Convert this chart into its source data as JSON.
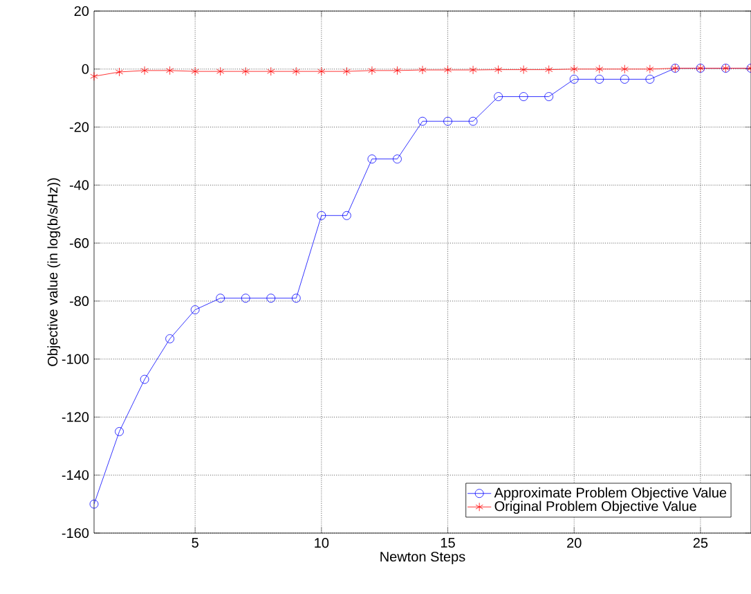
{
  "chart_data": {
    "type": "line",
    "xlabel": "Newton Steps",
    "ylabel": "Objective value (in log(b/s/Hz))",
    "x": [
      1,
      2,
      3,
      4,
      5,
      6,
      7,
      8,
      9,
      10,
      11,
      12,
      13,
      14,
      15,
      16,
      17,
      18,
      19,
      20,
      21,
      22,
      23,
      24,
      25,
      26,
      27
    ],
    "series": [
      {
        "name": "Approximate Problem Objective Value",
        "color": "#0000ff",
        "marker": "circle",
        "values": [
          -150,
          -125,
          -107,
          -93,
          -83,
          -79,
          -79,
          -79,
          -79,
          -50.5,
          -50.5,
          -31,
          -31,
          -18,
          -18,
          -18,
          -9.5,
          -9.5,
          -9.5,
          -3.5,
          -3.5,
          -3.5,
          -3.5,
          0.3,
          0.3,
          0.3,
          0.3
        ]
      },
      {
        "name": "Original Problem Objective Value",
        "color": "#ff0000",
        "marker": "cross",
        "values": [
          -2.5,
          -1,
          -0.5,
          -0.5,
          -0.8,
          -0.8,
          -0.8,
          -0.8,
          -0.8,
          -0.8,
          -0.8,
          -0.5,
          -0.5,
          -0.3,
          -0.3,
          -0.3,
          -0.2,
          -0.2,
          -0.2,
          0,
          0,
          0,
          0,
          0.3,
          0.3,
          0.3,
          0.3
        ]
      }
    ],
    "xlim": [
      1,
      27
    ],
    "ylim": [
      -160,
      20
    ],
    "xticks": [
      5,
      10,
      15,
      20,
      25
    ],
    "yticks": [
      -160,
      -140,
      -120,
      -100,
      -80,
      -60,
      -40,
      -20,
      0,
      20
    ],
    "grid": true,
    "legend": "bottom right",
    "line_style": "solid"
  }
}
